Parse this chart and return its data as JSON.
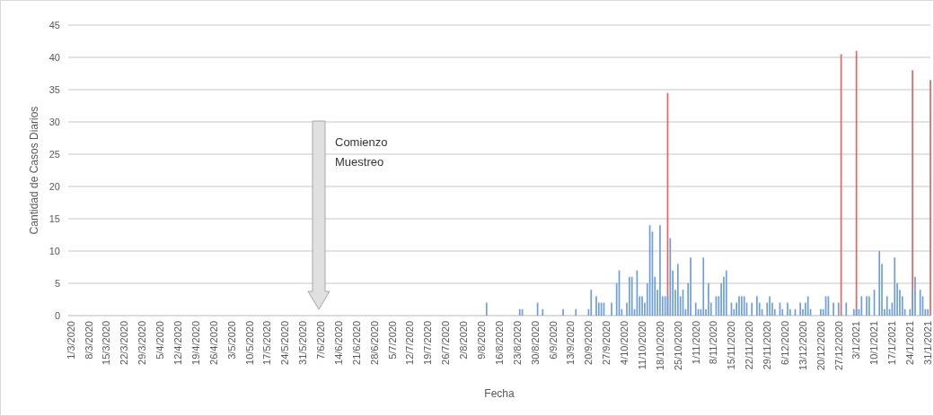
{
  "chart_data": {
    "type": "bar",
    "xlabel": "Fecha",
    "ylabel": "Cantidad de Casos Diarios",
    "xlim": [
      "2020-02-29",
      "2021-02-01"
    ],
    "xticks": [
      {
        "value": "2020-03-01",
        "label": "1/3/2020"
      },
      {
        "value": "2020-03-08",
        "label": "8/3/2020"
      },
      {
        "value": "2020-03-15",
        "label": "15/3/2020"
      },
      {
        "value": "2020-03-22",
        "label": "22/3/2020"
      },
      {
        "value": "2020-03-29",
        "label": "29/3/2020"
      },
      {
        "value": "2020-04-05",
        "label": "5/4/2020"
      },
      {
        "value": "2020-04-12",
        "label": "12/4/2020"
      },
      {
        "value": "2020-04-19",
        "label": "19/4/2020"
      },
      {
        "value": "2020-04-26",
        "label": "26/4/2020"
      },
      {
        "value": "2020-05-03",
        "label": "3/5/2020"
      },
      {
        "value": "2020-05-10",
        "label": "10/5/2020"
      },
      {
        "value": "2020-05-17",
        "label": "17/5/2020"
      },
      {
        "value": "2020-05-24",
        "label": "24/5/2020"
      },
      {
        "value": "2020-05-31",
        "label": "31/5/2020"
      },
      {
        "value": "2020-06-07",
        "label": "7/6/2020"
      },
      {
        "value": "2020-06-14",
        "label": "14/6/2020"
      },
      {
        "value": "2020-06-21",
        "label": "21/6/2020"
      },
      {
        "value": "2020-06-28",
        "label": "28/6/2020"
      },
      {
        "value": "2020-07-05",
        "label": "5/7/2020"
      },
      {
        "value": "2020-07-12",
        "label": "12/7/2020"
      },
      {
        "value": "2020-07-19",
        "label": "19/7/2020"
      },
      {
        "value": "2020-07-26",
        "label": "26/7/2020"
      },
      {
        "value": "2020-08-02",
        "label": "2/8/2020"
      },
      {
        "value": "2020-08-09",
        "label": "9/8/2020"
      },
      {
        "value": "2020-08-16",
        "label": "16/8/2020"
      },
      {
        "value": "2020-08-23",
        "label": "23/8/2020"
      },
      {
        "value": "2020-08-30",
        "label": "30/8/2020"
      },
      {
        "value": "2020-09-06",
        "label": "6/9/2020"
      },
      {
        "value": "2020-09-13",
        "label": "13/9/2020"
      },
      {
        "value": "2020-09-20",
        "label": "20/9/2020"
      },
      {
        "value": "2020-09-27",
        "label": "27/9/2020"
      },
      {
        "value": "2020-10-04",
        "label": "4/10/2020"
      },
      {
        "value": "2020-10-11",
        "label": "11/10/2020"
      },
      {
        "value": "2020-10-18",
        "label": "18/10/2020"
      },
      {
        "value": "2020-10-25",
        "label": "25/10/2020"
      },
      {
        "value": "2020-11-01",
        "label": "1/11/2020"
      },
      {
        "value": "2020-11-08",
        "label": "8/11/2020"
      },
      {
        "value": "2020-11-15",
        "label": "15/11/2020"
      },
      {
        "value": "2020-11-22",
        "label": "22/11/2020"
      },
      {
        "value": "2020-11-29",
        "label": "29/11/2020"
      },
      {
        "value": "2020-12-06",
        "label": "6/12/2020"
      },
      {
        "value": "2020-12-13",
        "label": "13/12/2020"
      },
      {
        "value": "2020-12-20",
        "label": "20/12/2020"
      },
      {
        "value": "2020-12-27",
        "label": "27/12/2020"
      },
      {
        "value": "2021-01-03",
        "label": "3/1/2021"
      },
      {
        "value": "2021-01-10",
        "label": "10/1/2021"
      },
      {
        "value": "2021-01-17",
        "label": "17/1/2021"
      },
      {
        "value": "2021-01-24",
        "label": "24/1/2021"
      },
      {
        "value": "2021-01-31",
        "label": "31/1/2021"
      }
    ],
    "ylim": [
      0,
      45
    ],
    "yticks": [
      0,
      5,
      10,
      15,
      20,
      25,
      30,
      35,
      40,
      45
    ],
    "grid": "y",
    "series": [
      {
        "color": "#e06666",
        "x": [
          "2020-10-21",
          "2020-12-28",
          "2021-01-03",
          "2021-01-25",
          "2021-02-01"
        ],
        "values": [
          34.5,
          40.5,
          41,
          38,
          36.5
        ]
      },
      {
        "color": "#6f9fd8",
        "x": [
          "2020-08-11",
          "2020-08-24",
          "2020-08-25",
          "2020-08-31",
          "2020-09-02",
          "2020-09-10",
          "2020-09-15",
          "2020-09-20",
          "2020-09-21",
          "2020-09-23",
          "2020-09-24",
          "2020-09-25",
          "2020-09-26",
          "2020-09-29",
          "2020-10-01",
          "2020-10-02",
          "2020-10-03",
          "2020-10-05",
          "2020-10-06",
          "2020-10-07",
          "2020-10-08",
          "2020-10-09",
          "2020-10-10",
          "2020-10-11",
          "2020-10-12",
          "2020-10-13",
          "2020-10-14",
          "2020-10-15",
          "2020-10-16",
          "2020-10-17",
          "2020-10-18",
          "2020-10-19",
          "2020-10-20",
          "2020-10-21",
          "2020-10-22",
          "2020-10-23",
          "2020-10-24",
          "2020-10-25",
          "2020-10-26",
          "2020-10-27",
          "2020-10-28",
          "2020-10-29",
          "2020-10-30",
          "2020-11-01",
          "2020-11-02",
          "2020-11-03",
          "2020-11-04",
          "2020-11-05",
          "2020-11-06",
          "2020-11-07",
          "2020-11-09",
          "2020-11-10",
          "2020-11-11",
          "2020-11-12",
          "2020-11-13",
          "2020-11-15",
          "2020-11-16",
          "2020-11-17",
          "2020-11-18",
          "2020-11-19",
          "2020-11-20",
          "2020-11-21",
          "2020-11-23",
          "2020-11-25",
          "2020-11-26",
          "2020-11-27",
          "2020-11-29",
          "2020-11-30",
          "2020-12-01",
          "2020-12-02",
          "2020-12-04",
          "2020-12-05",
          "2020-12-07",
          "2020-12-08",
          "2020-12-10",
          "2020-12-12",
          "2020-12-13",
          "2020-12-14",
          "2020-12-15",
          "2020-12-16",
          "2020-12-20",
          "2020-12-21",
          "2020-12-22",
          "2020-12-23",
          "2020-12-25",
          "2020-12-27",
          "2020-12-30",
          "2021-01-02",
          "2021-01-03",
          "2021-01-04",
          "2021-01-05",
          "2021-01-07",
          "2021-01-08",
          "2021-01-10",
          "2021-01-12",
          "2021-01-13",
          "2021-01-14",
          "2021-01-15",
          "2021-01-16",
          "2021-01-17",
          "2021-01-18",
          "2021-01-19",
          "2021-01-20",
          "2021-01-21",
          "2021-01-22",
          "2021-01-24",
          "2021-01-25",
          "2021-01-26",
          "2021-01-28",
          "2021-01-29",
          "2021-01-30",
          "2021-01-31"
        ],
        "values": [
          2,
          1,
          1,
          2,
          1,
          1,
          1,
          1,
          4,
          3,
          2,
          2,
          2,
          2,
          5,
          7,
          1,
          2,
          6,
          6,
          1,
          7,
          3,
          3,
          2,
          5,
          14,
          13,
          6,
          4,
          14,
          3,
          3,
          3,
          12,
          7,
          4,
          8,
          3,
          4,
          1,
          5,
          9,
          2,
          1,
          1,
          9,
          1,
          5,
          2,
          3,
          3,
          5,
          6,
          7,
          2,
          1,
          2,
          3,
          3,
          3,
          2,
          2,
          3,
          2,
          1,
          2,
          3,
          2,
          1,
          2,
          1,
          2,
          1,
          1,
          2,
          1,
          2,
          3,
          1,
          1,
          1,
          3,
          3,
          2,
          2,
          2,
          1,
          1,
          1,
          3,
          3,
          3,
          4,
          10,
          8,
          1,
          3,
          1,
          2,
          9,
          5,
          4,
          3,
          1,
          1,
          4,
          6,
          4,
          3,
          1,
          1
        ]
      }
    ],
    "annotations": [
      "Comienzo Muestreo"
    ]
  }
}
